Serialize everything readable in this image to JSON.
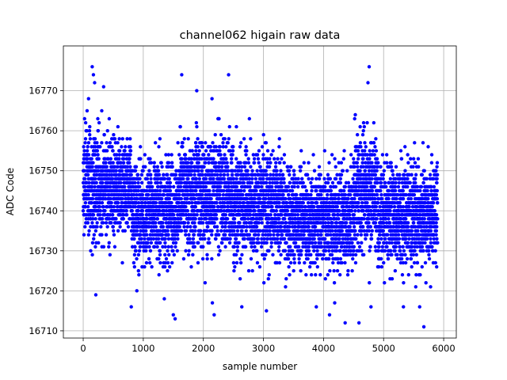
{
  "chart_data": {
    "type": "scatter",
    "title": "channel062 higain raw data",
    "xlabel": "sample number",
    "ylabel": "ADC Code",
    "xlim": [
      -330,
      6210
    ],
    "ylim": [
      16708.2,
      16781.2
    ],
    "xticks": [
      0,
      1000,
      2000,
      3000,
      4000,
      5000,
      6000
    ],
    "yticks": [
      16710,
      16720,
      16730,
      16740,
      16750,
      16760,
      16770
    ],
    "xtick_labels": [
      "0",
      "1000",
      "2000",
      "3000",
      "4000",
      "5000",
      "6000"
    ],
    "ytick_labels": [
      "16710",
      "16720",
      "16730",
      "16740",
      "16750",
      "16760",
      "16770"
    ],
    "grid": true,
    "marker_color": "#0000ff",
    "series": [
      {
        "n_samples": 5900,
        "baseline": 16743,
        "segments": [
          {
            "x0": 0,
            "x1": 250,
            "mean": 16747,
            "sd": 7
          },
          {
            "x0": 250,
            "x1": 800,
            "mean": 16746,
            "sd": 6
          },
          {
            "x0": 800,
            "x1": 1600,
            "mean": 16740,
            "sd": 6
          },
          {
            "x0": 1600,
            "x1": 2500,
            "mean": 16744,
            "sd": 7
          },
          {
            "x0": 2500,
            "x1": 3350,
            "mean": 16741,
            "sd": 6.5
          },
          {
            "x0": 3350,
            "x1": 4500,
            "mean": 16738,
            "sd": 6
          },
          {
            "x0": 4500,
            "x1": 4900,
            "mean": 16745,
            "sd": 7
          },
          {
            "x0": 4900,
            "x1": 5900,
            "mean": 16739,
            "sd": 6
          }
        ],
        "outliers": [
          {
            "x": 150,
            "y": 16776
          },
          {
            "x": 170,
            "y": 16774
          },
          {
            "x": 190,
            "y": 16772
          },
          {
            "x": 340,
            "y": 16771
          },
          {
            "x": 1640,
            "y": 16774
          },
          {
            "x": 1890,
            "y": 16770
          },
          {
            "x": 2420,
            "y": 16774
          },
          {
            "x": 4760,
            "y": 16776
          },
          {
            "x": 4740,
            "y": 16772
          },
          {
            "x": 1530,
            "y": 16713
          },
          {
            "x": 1500,
            "y": 16714
          },
          {
            "x": 4360,
            "y": 16712
          },
          {
            "x": 4590,
            "y": 16712
          },
          {
            "x": 5670,
            "y": 16711
          },
          {
            "x": 2180,
            "y": 16714
          },
          {
            "x": 3050,
            "y": 16715
          },
          {
            "x": 4100,
            "y": 16714
          },
          {
            "x": 800,
            "y": 16716
          },
          {
            "x": 2640,
            "y": 16716
          },
          {
            "x": 3880,
            "y": 16716
          },
          {
            "x": 4790,
            "y": 16716
          },
          {
            "x": 5330,
            "y": 16716
          },
          {
            "x": 5600,
            "y": 16716
          },
          {
            "x": 210,
            "y": 16719
          },
          {
            "x": 1350,
            "y": 16718
          },
          {
            "x": 2150,
            "y": 16717
          }
        ]
      }
    ]
  }
}
